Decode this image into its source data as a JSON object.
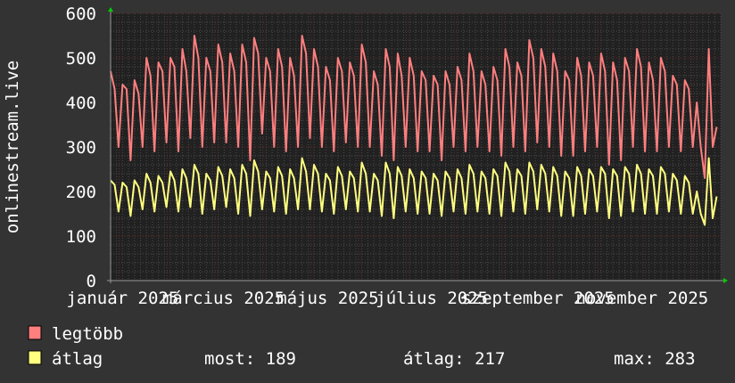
{
  "chart_data": {
    "type": "line",
    "ylabel": "onlinestream.live",
    "ylim": [
      0,
      600
    ],
    "yticks": [
      0,
      100,
      200,
      300,
      400,
      500,
      600
    ],
    "xlim": [
      "2024-12-25",
      "2025-12-17"
    ],
    "x_start": "2024-12-25",
    "x_step_days": 2.3333,
    "xtick_labels": [
      {
        "date": "2025-01-01",
        "label": "január 2025"
      },
      {
        "date": "2025-03-01",
        "label": "március 2025"
      },
      {
        "date": "2025-05-01",
        "label": "május 2025"
      },
      {
        "date": "2025-07-01",
        "label": "július 2025"
      },
      {
        "date": "2025-09-01",
        "label": "szeptember 2025"
      },
      {
        "date": "2025-11-01",
        "label": "november 2025"
      }
    ],
    "grid": true,
    "background": "#212121",
    "series": [
      {
        "name": "legtöbb",
        "color": "#ff7f7f",
        "values": [
          470,
          430,
          300,
          440,
          430,
          270,
          450,
          420,
          300,
          500,
          460,
          290,
          490,
          470,
          310,
          500,
          480,
          290,
          520,
          470,
          320,
          550,
          500,
          300,
          500,
          470,
          310,
          530,
          490,
          310,
          510,
          470,
          300,
          530,
          490,
          270,
          545,
          510,
          330,
          500,
          470,
          300,
          520,
          480,
          290,
          500,
          460,
          300,
          550,
          510,
          320,
          520,
          480,
          300,
          480,
          450,
          290,
          500,
          470,
          310,
          490,
          460,
          300,
          530,
          490,
          300,
          470,
          440,
          280,
          520,
          480,
          270,
          510,
          460,
          300,
          500,
          460,
          290,
          470,
          450,
          290,
          460,
          440,
          270,
          470,
          440,
          300,
          480,
          450,
          290,
          510,
          470,
          300,
          470,
          440,
          290,
          480,
          450,
          280,
          520,
          480,
          300,
          490,
          460,
          290,
          540,
          500,
          310,
          520,
          480,
          300,
          510,
          470,
          280,
          470,
          450,
          280,
          500,
          460,
          290,
          490,
          460,
          300,
          510,
          470,
          260,
          490,
          450,
          270,
          500,
          470,
          300,
          520,
          480,
          290,
          490,
          450,
          290,
          500,
          470,
          300,
          460,
          440,
          290,
          450,
          430,
          300,
          400,
          300,
          230,
          520,
          300,
          345
        ]
      },
      {
        "name": "átlag",
        "color": "#ffff80",
        "values": [
          225,
          215,
          155,
          220,
          210,
          145,
          225,
          210,
          160,
          240,
          220,
          155,
          235,
          220,
          165,
          245,
          225,
          155,
          250,
          230,
          165,
          260,
          240,
          150,
          240,
          225,
          160,
          255,
          235,
          165,
          250,
          230,
          150,
          260,
          240,
          145,
          270,
          245,
          160,
          245,
          230,
          155,
          255,
          235,
          150,
          250,
          230,
          160,
          275,
          245,
          160,
          260,
          240,
          155,
          240,
          225,
          150,
          255,
          235,
          160,
          245,
          230,
          155,
          265,
          240,
          155,
          240,
          225,
          145,
          265,
          240,
          140,
          255,
          235,
          155,
          250,
          230,
          150,
          245,
          230,
          150,
          240,
          225,
          145,
          245,
          230,
          155,
          250,
          230,
          150,
          260,
          240,
          155,
          245,
          230,
          150,
          250,
          235,
          145,
          265,
          245,
          155,
          250,
          235,
          150,
          265,
          245,
          160,
          260,
          240,
          155,
          255,
          235,
          145,
          245,
          230,
          145,
          255,
          235,
          150,
          250,
          235,
          155,
          255,
          240,
          140,
          250,
          235,
          145,
          255,
          240,
          155,
          260,
          240,
          150,
          250,
          235,
          150,
          255,
          240,
          155,
          240,
          225,
          150,
          235,
          220,
          150,
          200,
          150,
          125,
          275,
          140,
          189
        ]
      }
    ],
    "legend": {
      "placement": "bottom-left",
      "items": [
        {
          "label": "legtöbb",
          "color": "#ff7f7f"
        },
        {
          "label": "átlag",
          "color": "#ffff80"
        }
      ],
      "stats": {
        "most": "most: 189",
        "avg": "átlag: 217",
        "max": "max: 283"
      }
    }
  }
}
